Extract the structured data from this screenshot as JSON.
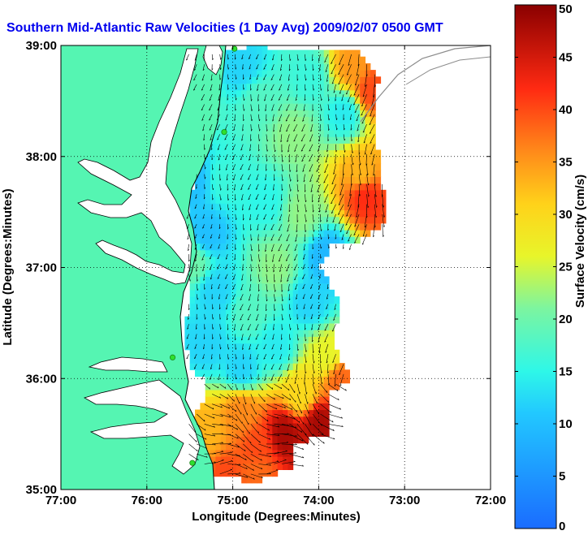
{
  "chart_data": {
    "type": "heatmap",
    "title": "Southern Mid-Atlantic Raw Velocities (1 Day Avg) 2009/02/07 0500 GMT",
    "xlabel": "Longitude (Degrees:Minutes)",
    "ylabel": "Latitude (Degrees:Minutes)",
    "xlim": [
      -77,
      -72
    ],
    "ylim": [
      35,
      39
    ],
    "x_ticks": [
      -77,
      -76,
      -75,
      -74,
      -73,
      -72
    ],
    "x_tick_labels": [
      "77:00",
      "76:00",
      "75:00",
      "74:00",
      "73:00",
      "72:00"
    ],
    "y_ticks": [
      35,
      36,
      37,
      38,
      39
    ],
    "y_tick_labels": [
      "35:00",
      "36:00",
      "37:00",
      "38:00",
      "39:00"
    ],
    "grid": true,
    "colorbar": {
      "label": "Surface Velocity (cm/s)",
      "range": [
        0,
        50
      ],
      "ticks": [
        0,
        5,
        10,
        15,
        20,
        25,
        30,
        35,
        40,
        45,
        50
      ],
      "tick_labels": [
        "0",
        "5",
        "10",
        "15",
        "20",
        "25",
        "30",
        "35",
        "40",
        "45",
        "50"
      ]
    },
    "coverage_polygon": [
      [
        -75.55,
        38.92
      ],
      [
        -74.75,
        39.0
      ],
      [
        -73.9,
        38.93
      ],
      [
        -73.55,
        38.95
      ],
      [
        -73.3,
        38.72
      ],
      [
        -73.35,
        38.3
      ],
      [
        -73.28,
        37.9
      ],
      [
        -73.2,
        37.4
      ],
      [
        -73.6,
        37.2
      ],
      [
        -73.85,
        37.2
      ],
      [
        -74.0,
        37.0
      ],
      [
        -73.75,
        36.7
      ],
      [
        -73.82,
        36.3
      ],
      [
        -73.62,
        36.0
      ],
      [
        -73.85,
        35.9
      ],
      [
        -73.9,
        35.5
      ],
      [
        -74.3,
        35.4
      ],
      [
        -74.3,
        35.22
      ],
      [
        -74.7,
        35.08
      ],
      [
        -75.15,
        35.1
      ],
      [
        -75.55,
        35.3
      ],
      [
        -75.55,
        35.6
      ],
      [
        -75.3,
        35.8
      ],
      [
        -75.35,
        36.0
      ],
      [
        -75.5,
        36.1
      ],
      [
        -75.55,
        36.4
      ],
      [
        -75.5,
        36.8
      ],
      [
        -75.55,
        37.2
      ],
      [
        -75.5,
        37.6
      ],
      [
        -75.4,
        38.0
      ],
      [
        -75.35,
        38.5
      ]
    ],
    "speed_samples": [
      {
        "lon": -74.3,
        "lat": 38.2,
        "v": 22
      },
      {
        "lon": -74.7,
        "lat": 38.5,
        "v": 18
      },
      {
        "lon": -74.9,
        "lat": 38.8,
        "v": 12
      },
      {
        "lon": -74.1,
        "lat": 38.7,
        "v": 16
      },
      {
        "lon": -73.6,
        "lat": 38.8,
        "v": 35
      },
      {
        "lon": -73.4,
        "lat": 38.6,
        "v": 40
      },
      {
        "lon": -73.7,
        "lat": 38.4,
        "v": 14
      },
      {
        "lon": -73.45,
        "lat": 37.65,
        "v": 42
      },
      {
        "lon": -73.5,
        "lat": 37.85,
        "v": 33
      },
      {
        "lon": -75.1,
        "lat": 37.8,
        "v": 16
      },
      {
        "lon": -75.3,
        "lat": 37.3,
        "v": 10
      },
      {
        "lon": -74.6,
        "lat": 37.6,
        "v": 15
      },
      {
        "lon": -74.2,
        "lat": 37.5,
        "v": 22
      },
      {
        "lon": -73.9,
        "lat": 37.1,
        "v": 9
      },
      {
        "lon": -74.5,
        "lat": 37.0,
        "v": 22
      },
      {
        "lon": -74.8,
        "lat": 36.6,
        "v": 18
      },
      {
        "lon": -75.2,
        "lat": 36.8,
        "v": 12
      },
      {
        "lon": -74.1,
        "lat": 36.7,
        "v": 12
      },
      {
        "lon": -74.5,
        "lat": 36.3,
        "v": 14
      },
      {
        "lon": -75.3,
        "lat": 36.3,
        "v": 12
      },
      {
        "lon": -74.9,
        "lat": 36.1,
        "v": 12
      },
      {
        "lon": -73.9,
        "lat": 36.2,
        "v": 26
      },
      {
        "lon": -73.75,
        "lat": 36.0,
        "v": 38
      },
      {
        "lon": -74.2,
        "lat": 35.85,
        "v": 30
      },
      {
        "lon": -74.0,
        "lat": 35.6,
        "v": 48
      },
      {
        "lon": -74.4,
        "lat": 35.5,
        "v": 48
      },
      {
        "lon": -74.1,
        "lat": 35.3,
        "v": 45
      },
      {
        "lon": -74.7,
        "lat": 35.4,
        "v": 40
      },
      {
        "lon": -74.9,
        "lat": 35.7,
        "v": 36
      },
      {
        "lon": -75.3,
        "lat": 35.5,
        "v": 33
      },
      {
        "lon": -74.7,
        "lat": 35.15,
        "v": 38
      },
      {
        "lon": -75.1,
        "lat": 35.15,
        "v": 40
      },
      {
        "lon": -75.4,
        "lat": 35.35,
        "v": 34
      },
      {
        "lon": -75.45,
        "lat": 37.8,
        "v": 10
      },
      {
        "lon": -75.4,
        "lat": 38.5,
        "v": 18
      },
      {
        "lon": -75.45,
        "lat": 37.05,
        "v": 20
      }
    ],
    "series": [
      {
        "values": []
      }
    ]
  },
  "colors": {
    "land": "#55f5b2",
    "ocean": "#ffffff",
    "coast_line": "#000000",
    "title": "#0000ee",
    "grid": "#000000",
    "station": "#2ee02e"
  },
  "stations": [
    {
      "lon": -74.98,
      "lat": 38.97
    },
    {
      "lon": -75.1,
      "lat": 38.22
    },
    {
      "lon": -75.7,
      "lat": 36.19
    },
    {
      "lon": -75.47,
      "lat": 35.24
    }
  ]
}
